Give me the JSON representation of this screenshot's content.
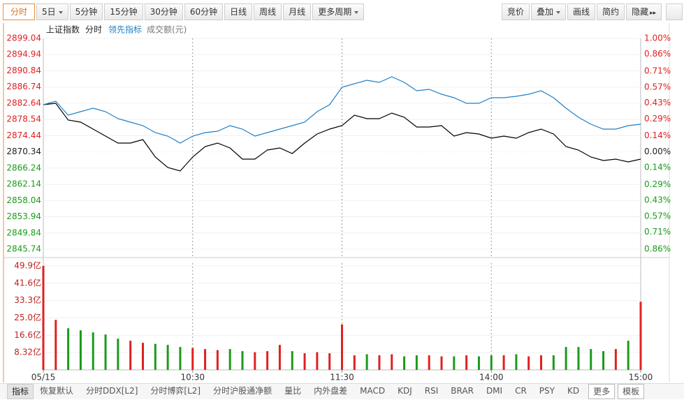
{
  "toolbar": {
    "left": [
      "分时",
      "5日",
      "5分钟",
      "15分钟",
      "30分钟",
      "60分钟",
      "日线",
      "周线",
      "月线",
      "更多周期"
    ],
    "right": [
      "竞价",
      "叠加",
      "画线",
      "简约",
      "隐藏"
    ]
  },
  "chart_data": [
    {
      "type": "line",
      "title": "上证指数",
      "x": [
        0,
        5,
        10,
        15,
        20,
        25,
        30,
        35,
        40,
        45,
        50,
        55,
        60,
        65,
        70,
        75,
        80,
        85,
        90,
        95,
        100,
        105,
        110,
        115,
        120,
        125,
        130,
        135,
        140,
        145,
        150,
        155,
        160,
        165,
        170,
        175,
        180,
        185,
        190,
        195,
        200,
        205,
        210,
        215,
        220,
        225,
        230,
        235,
        240
      ],
      "xlim": [
        0,
        240
      ],
      "xticks": [
        60,
        120,
        180
      ],
      "ylim": [
        2845.74,
        2899.04
      ],
      "yticks": [
        2899.04,
        2894.94,
        2890.84,
        2886.74,
        2882.64,
        2878.54,
        2874.44,
        2870.34,
        2866.24,
        2862.14,
        2858.04,
        2853.94,
        2849.84,
        2845.74
      ],
      "y2lim": [
        -0.86,
        1.0
      ],
      "y2ticks": [
        {
          "value": 1.0,
          "label": "1.00%"
        },
        {
          "value": 0.86,
          "label": "0.86%"
        },
        {
          "value": 0.71,
          "label": "0.71%"
        },
        {
          "value": 0.57,
          "label": "0.57%"
        },
        {
          "value": 0.43,
          "label": "0.43%"
        },
        {
          "value": 0.29,
          "label": "0.29%"
        },
        {
          "value": 0.14,
          "label": "0.14%"
        },
        {
          "value": 0.0,
          "label": "0.00%"
        },
        {
          "value": -0.14,
          "label": "0.14%"
        },
        {
          "value": -0.29,
          "label": "0.29%"
        },
        {
          "value": -0.43,
          "label": "0.43%"
        },
        {
          "value": -0.57,
          "label": "0.57%"
        },
        {
          "value": -0.71,
          "label": "0.71%"
        },
        {
          "value": -0.86,
          "label": "0.86%"
        }
      ],
      "up_color": "#e02020",
      "down_color": "#1a9a1a",
      "grid": true,
      "series": [
        {
          "name": "分时",
          "color": "#000000",
          "values": [
            2882.27,
            2882.63,
            2878.39,
            2877.86,
            2876.09,
            2874.33,
            2872.56,
            2872.56,
            2873.45,
            2869.03,
            2866.39,
            2865.5,
            2869.03,
            2871.68,
            2872.56,
            2871.33,
            2868.51,
            2868.51,
            2870.8,
            2871.33,
            2869.92,
            2872.56,
            2874.86,
            2876.09,
            2876.98,
            2879.62,
            2878.74,
            2878.74,
            2880.15,
            2879.1,
            2876.62,
            2876.62,
            2876.98,
            2874.33,
            2875.21,
            2874.86,
            2873.8,
            2874.33,
            2873.8,
            2875.21,
            2876.09,
            2874.86,
            2871.68,
            2870.8,
            2869.03,
            2868.15,
            2868.51,
            2867.8,
            2868.51
          ]
        },
        {
          "name": "领先指标",
          "color": "#1f7fc4",
          "values": [
            2882.27,
            2883.15,
            2879.62,
            2880.51,
            2881.39,
            2880.51,
            2878.74,
            2877.86,
            2876.98,
            2875.21,
            2874.33,
            2872.56,
            2874.33,
            2875.21,
            2875.57,
            2876.98,
            2876.09,
            2874.33,
            2875.21,
            2876.09,
            2876.98,
            2877.86,
            2880.51,
            2882.27,
            2886.68,
            2887.57,
            2888.45,
            2887.92,
            2889.33,
            2887.92,
            2885.8,
            2886.16,
            2884.92,
            2884.04,
            2882.63,
            2882.63,
            2884.04,
            2884.04,
            2884.39,
            2884.92,
            2885.8,
            2884.04,
            2881.39,
            2879.1,
            2877.33,
            2876.09,
            2876.09,
            2876.98,
            2877.33
          ]
        }
      ]
    },
    {
      "type": "bar",
      "title": "成交额(元)",
      "x": [
        0,
        5,
        10,
        15,
        20,
        25,
        30,
        35,
        40,
        45,
        50,
        55,
        60,
        65,
        70,
        75,
        80,
        85,
        90,
        95,
        100,
        105,
        110,
        115,
        120,
        125,
        130,
        135,
        140,
        145,
        150,
        155,
        160,
        165,
        170,
        175,
        180,
        185,
        190,
        195,
        200,
        205,
        210,
        215,
        220,
        225,
        230,
        235,
        240
      ],
      "xlim": [
        0,
        240
      ],
      "xticks": [
        {
          "value": 0,
          "label": "05/15"
        },
        {
          "value": 60,
          "label": "10:30"
        },
        {
          "value": 120,
          "label": "11:30"
        },
        {
          "value": 180,
          "label": "14:00"
        },
        {
          "value": 240,
          "label": "15:00"
        }
      ],
      "ylim": [
        0,
        49.9
      ],
      "yticks": [
        {
          "value": 8.32,
          "label": "8.32亿"
        },
        {
          "value": 16.6,
          "label": "16.6亿"
        },
        {
          "value": 25.0,
          "label": "25.0亿"
        },
        {
          "value": 33.3,
          "label": "33.3亿"
        },
        {
          "value": 41.6,
          "label": "41.6亿"
        },
        {
          "value": 49.9,
          "label": "49.9亿"
        }
      ],
      "up_color": "#e02020",
      "down_color": "#1a9a1a",
      "grid": true,
      "values": [
        49.9,
        24,
        20,
        19,
        18,
        17,
        15,
        14,
        13,
        12.5,
        12,
        11,
        10.5,
        10,
        9.5,
        10,
        9,
        8.5,
        9,
        12,
        9,
        8,
        8.5,
        8,
        21.8,
        7,
        7.5,
        7,
        7.5,
        6.5,
        7,
        7,
        6.5,
        6.5,
        7,
        6.5,
        7,
        7,
        7.5,
        6.5,
        7,
        7,
        11,
        11,
        10,
        9,
        10,
        14,
        32.7
      ]
    }
  ],
  "bottom_tabs": [
    "指标",
    "恢复默认",
    "分时DDX[L2]",
    "分时博弈[L2]",
    "分时沪股通净额",
    "量比",
    "内外盘差",
    "MACD",
    "KDJ",
    "RSI",
    "BRAR",
    "DMI",
    "CR",
    "PSY",
    "KD",
    "更多",
    "模板"
  ]
}
